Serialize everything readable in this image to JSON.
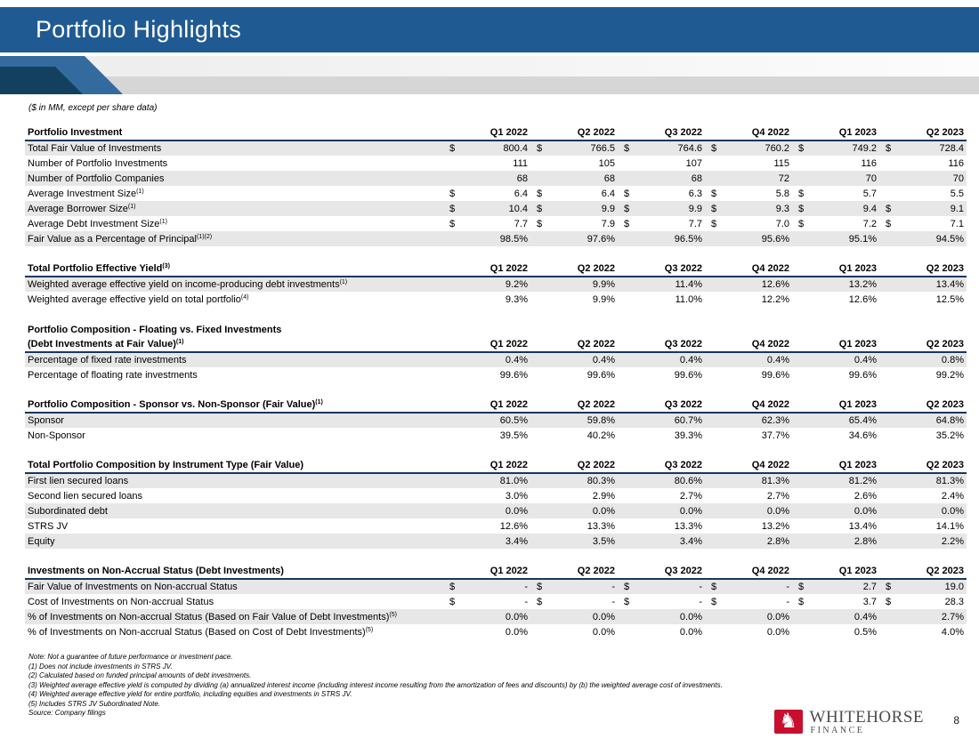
{
  "slide": {
    "title": "Portfolio Highlights",
    "units_note": "($ in MM, except per share data)",
    "page_number": "8"
  },
  "colors": {
    "banner_blue": "#205A93",
    "chevron_dark": "#14405F",
    "chevron_mid": "#336B9E",
    "band_gray": "#D6D6D6",
    "row_shade": "#E7E7E7",
    "header_rule": "#17375E",
    "logo_red": "#C8102E",
    "logo_text": "#4D4D4F"
  },
  "columns": [
    "Q1 2022",
    "Q2 2022",
    "Q3 2022",
    "Q4 2022",
    "Q1 2023",
    "Q2 2023"
  ],
  "tables": [
    {
      "title": "Portfolio Investment",
      "title_sup": "",
      "rows": [
        {
          "label": "Total Fair Value of Investments",
          "sup": "",
          "currency": [
            true,
            true,
            true,
            true,
            true,
            true
          ],
          "values": [
            "800.4",
            "766.5",
            "764.6",
            "760.2",
            "749.2",
            "728.4"
          ]
        },
        {
          "label": "Number of Portfolio Investments",
          "sup": "",
          "values": [
            "111",
            "105",
            "107",
            "115",
            "116",
            "116"
          ]
        },
        {
          "label": "Number of Portfolio Companies",
          "sup": "",
          "values": [
            "68",
            "68",
            "68",
            "72",
            "70",
            "70"
          ]
        },
        {
          "label": "Average Investment Size",
          "sup": "(1)",
          "currency": [
            true,
            true,
            true,
            true,
            true,
            false
          ],
          "values": [
            "6.4",
            "6.4",
            "6.3",
            "5.8",
            "5.7",
            "5.5"
          ]
        },
        {
          "label": "Average Borrower Size",
          "sup": "(1)",
          "currency": [
            true,
            true,
            true,
            true,
            true,
            true
          ],
          "values": [
            "10.4",
            "9.9",
            "9.9",
            "9.3",
            "9.4",
            "9.1"
          ]
        },
        {
          "label": "Average Debt Investment Size",
          "sup": "(1)",
          "currency": [
            true,
            true,
            true,
            true,
            true,
            true
          ],
          "values": [
            "7.7",
            "7.9",
            "7.7",
            "7.0",
            "7.2",
            "7.1"
          ]
        },
        {
          "label": "Fair Value as a Percentage of Principal",
          "sup": "(1)(2)",
          "values": [
            "98.5%",
            "97.6%",
            "96.5%",
            "95.6%",
            "95.1%",
            "94.5%"
          ]
        }
      ]
    },
    {
      "title": "Total Portfolio Effective Yield",
      "title_sup": "(3)",
      "rows": [
        {
          "label": "Weighted average effective yield on income-producing debt investments",
          "sup": "(1)",
          "values": [
            "9.2%",
            "9.9%",
            "11.4%",
            "12.6%",
            "13.2%",
            "13.4%"
          ]
        },
        {
          "label": "Weighted average effective yield on total portfolio",
          "sup": "(4)",
          "values": [
            "9.3%",
            "9.9%",
            "11.0%",
            "12.2%",
            "12.6%",
            "12.5%"
          ]
        }
      ]
    },
    {
      "pretitle": "Portfolio Composition - Floating vs. Fixed Investments",
      "pretitle_sup": "",
      "title": "(Debt Investments at Fair Value)",
      "title_sup": "(1)",
      "rows": [
        {
          "label": "Percentage of fixed rate investments",
          "sup": "",
          "values": [
            "0.4%",
            "0.4%",
            "0.4%",
            "0.4%",
            "0.4%",
            "0.8%"
          ]
        },
        {
          "label": "Percentage of floating rate investments",
          "sup": "",
          "values": [
            "99.6%",
            "99.6%",
            "99.6%",
            "99.6%",
            "99.6%",
            "99.2%"
          ]
        }
      ]
    },
    {
      "title": "Portfolio Composition - Sponsor vs. Non-Sponsor (Fair Value)",
      "title_sup": "(1)",
      "rows": [
        {
          "label": "Sponsor",
          "sup": "",
          "values": [
            "60.5%",
            "59.8%",
            "60.7%",
            "62.3%",
            "65.4%",
            "64.8%"
          ]
        },
        {
          "label": "Non-Sponsor",
          "sup": "",
          "values": [
            "39.5%",
            "40.2%",
            "39.3%",
            "37.7%",
            "34.6%",
            "35.2%"
          ]
        }
      ]
    },
    {
      "title": "Total Portfolio Composition by Instrument Type (Fair Value)",
      "title_sup": "",
      "rows": [
        {
          "label": "First lien secured loans",
          "sup": "",
          "values": [
            "81.0%",
            "80.3%",
            "80.6%",
            "81.3%",
            "81.2%",
            "81.3%"
          ]
        },
        {
          "label": "Second lien secured loans",
          "sup": "",
          "values": [
            "3.0%",
            "2.9%",
            "2.7%",
            "2.7%",
            "2.6%",
            "2.4%"
          ]
        },
        {
          "label": "Subordinated debt",
          "sup": "",
          "values": [
            "0.0%",
            "0.0%",
            "0.0%",
            "0.0%",
            "0.0%",
            "0.0%"
          ]
        },
        {
          "label": "STRS JV",
          "sup": "",
          "values": [
            "12.6%",
            "13.3%",
            "13.3%",
            "13.2%",
            "13.4%",
            "14.1%"
          ]
        },
        {
          "label": "Equity",
          "sup": "",
          "values": [
            "3.4%",
            "3.5%",
            "3.4%",
            "2.8%",
            "2.8%",
            "2.2%"
          ]
        }
      ]
    },
    {
      "title": "Investments on Non-Accrual Status (Debt Investments)",
      "title_sup": "",
      "rows": [
        {
          "label": "Fair Value of Investments on Non-accrual Status",
          "sup": "",
          "currency": [
            true,
            true,
            true,
            true,
            true,
            true
          ],
          "values": [
            "-",
            "-",
            "-",
            "-",
            "2.7",
            "19.0"
          ]
        },
        {
          "label": "Cost of Investments on Non-accrual Status",
          "sup": "",
          "currency": [
            true,
            true,
            true,
            true,
            true,
            true
          ],
          "values": [
            "-",
            "-",
            "-",
            "-",
            "3.7",
            "28.3"
          ]
        },
        {
          "label": "% of Investments on Non-accrual Status (Based on Fair Value of Debt Investments)",
          "sup": "(5)",
          "values": [
            "0.0%",
            "0.0%",
            "0.0%",
            "0.0%",
            "0.4%",
            "2.7%"
          ]
        },
        {
          "label": "% of Investments on Non-accrual Status (Based on Cost of Debt Investments)",
          "sup": "(5)",
          "values": [
            "0.0%",
            "0.0%",
            "0.0%",
            "0.0%",
            "0.5%",
            "4.0%"
          ]
        }
      ]
    }
  ],
  "footnotes": [
    "Note: Not a guarantee of future performance or investment pace.",
    "(1) Does not include investments in STRS JV.",
    "(2) Calculated based on funded principal amounts of debt investments.",
    "(3) Weighted average effective yield is computed by dividing (a) annualized interest income (including interest income resulting from the amortization of fees and discounts) by (b) the weighted average cost of investments.",
    "(4) Weighted average effective yield for entire portfolio, including equities and investments in STRS JV.",
    "(5) Includes STRS JV Subordinated Note.",
    "Source: Company filings"
  ],
  "logo": {
    "name": "WHITEHORSE",
    "subname": "FINANCE",
    "icon": "horse-head-icon"
  }
}
